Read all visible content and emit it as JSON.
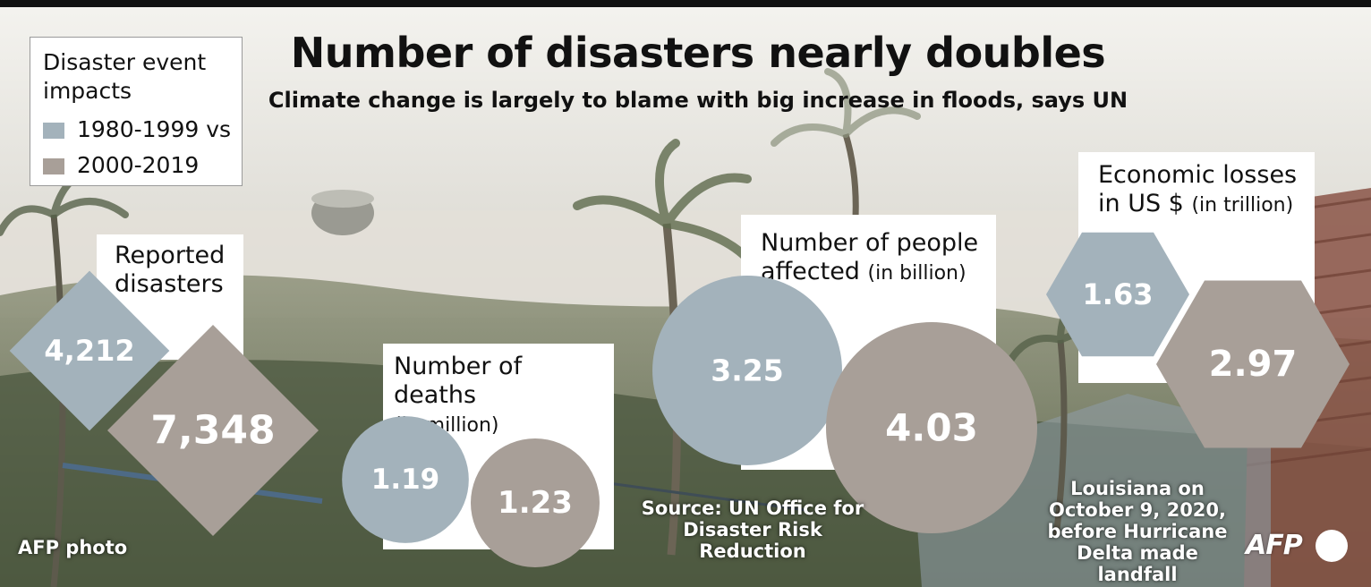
{
  "chart_data": {
    "type": "proportional-shapes",
    "title": "Number of disasters nearly doubles",
    "subtitle": "Climate change is largely to blame with big increase in floods, says UN",
    "legend": {
      "title": "Disaster event impacts",
      "entries": [
        {
          "label": "1980-1999 vs",
          "color": "#a3b2bb"
        },
        {
          "label": "2000-2019",
          "color": "#a89f98"
        }
      ]
    },
    "periods": [
      "1980-1999",
      "2000-2019"
    ],
    "metrics": [
      {
        "label": "Reported disasters",
        "unit": "",
        "shape": "diamond",
        "values": [
          4212,
          7348
        ],
        "display": [
          "4,212",
          "7,348"
        ]
      },
      {
        "label": "Number of deaths",
        "unit": "(in million)",
        "shape": "circle",
        "values": [
          1.19,
          1.23
        ],
        "display": [
          "1.19",
          "1.23"
        ]
      },
      {
        "label": "Number of people affected",
        "unit": "(in billion)",
        "shape": "circle",
        "values": [
          3.25,
          4.03
        ],
        "display": [
          "3.25",
          "4.03"
        ]
      },
      {
        "label": "Economic losses in US $",
        "unit": "(in trillion)",
        "shape": "hexagon",
        "values": [
          1.63,
          2.97
        ],
        "display": [
          "1.63",
          "2.97"
        ]
      }
    ]
  },
  "labels": {
    "disasters": "Reported disasters",
    "deaths": "Number of deaths",
    "deaths_unit": "(in million)",
    "people": "Number of people affected",
    "people_unit": "(in billion)",
    "losses": "Economic losses in US $",
    "losses_unit": "(in trillion)"
  },
  "credits": {
    "photo": "AFP photo",
    "source": "Source: UN Office for Disaster Risk Reduction",
    "photo_caption": "Louisiana on October 9, 2020, before Hurricane Delta made landfall",
    "logo": "AFP"
  }
}
